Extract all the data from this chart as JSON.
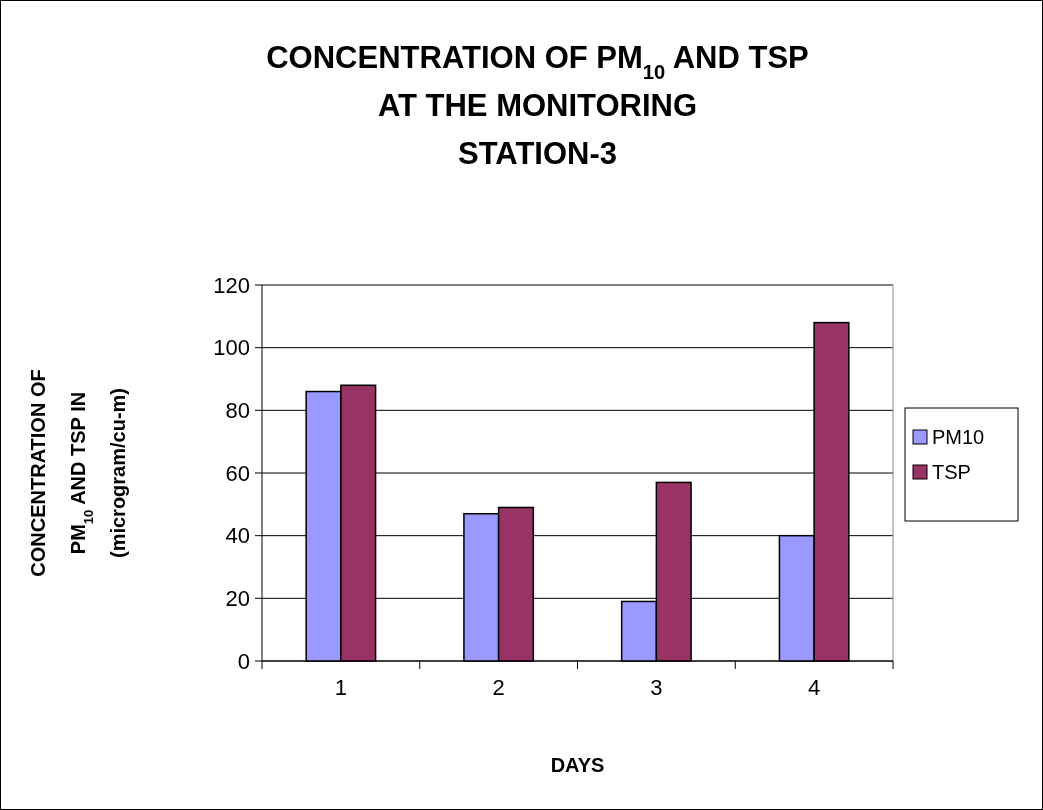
{
  "chart_data": {
    "type": "bar",
    "title": "CONCENTRATION OF PM$_{10}$ AND TSP\nAT THE MONITORING\nSTATION-3",
    "xlabel": "DAYS",
    "ylabel": "CONCENTRATION OF\nPM$_{10}$ AND TSP IN\n(microgram/cu-m)",
    "categories": [
      "1",
      "2",
      "3",
      "4"
    ],
    "series": [
      {
        "name": "PM10",
        "color": "#9999ff",
        "values": [
          86,
          47,
          19,
          40
        ]
      },
      {
        "name": "TSP",
        "color": "#993366",
        "values": [
          88,
          49,
          57,
          108
        ]
      }
    ],
    "ylim": [
      0,
      120
    ],
    "yticks": [
      0,
      20,
      40,
      60,
      80,
      100,
      120
    ],
    "grid": "y",
    "legend": "right"
  }
}
